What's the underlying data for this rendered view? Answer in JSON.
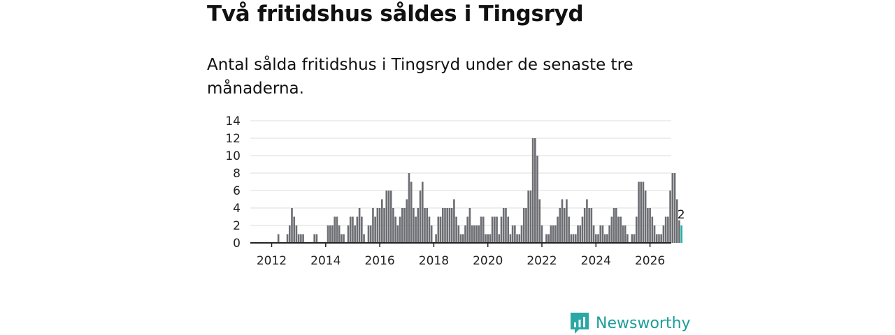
{
  "header": {
    "title": "Två fritidshus såldes i Tingsryd",
    "subtitle": "Antal sålda fritidshus i Tingsryd under de senaste tre månaderna."
  },
  "brand": {
    "name": "Newsworthy"
  },
  "colors": {
    "bar": "#6d6e73",
    "highlight": "#1fb5b0",
    "grid": "#dddddd",
    "axis": "#222222",
    "brand": "#1c9c9a"
  },
  "chart_data": {
    "type": "bar",
    "title": "Antal sålda fritidshus i Tingsryd under de senaste tre månaderna.",
    "xlabel": "",
    "ylabel": "",
    "ylim": [
      0,
      14
    ],
    "yticks": [
      0,
      2,
      4,
      6,
      8,
      10,
      12,
      14
    ],
    "xticks": [
      "2012",
      "2014",
      "2016",
      "2018",
      "2020",
      "2022",
      "2024",
      "2026"
    ],
    "start": "2011-01",
    "frequency": "monthly",
    "values": [
      0,
      0,
      0,
      0,
      0,
      0,
      0,
      0,
      0,
      0,
      0,
      0,
      0,
      0,
      0,
      1,
      0,
      0,
      0,
      1,
      2,
      4,
      3,
      2,
      1,
      1,
      1,
      0,
      0,
      0,
      0,
      1,
      1,
      0,
      0,
      0,
      0,
      2,
      2,
      2,
      3,
      3,
      2,
      1,
      1,
      0,
      2,
      3,
      3,
      2,
      3,
      4,
      3,
      1,
      0,
      2,
      2,
      4,
      3,
      4,
      4,
      5,
      4,
      6,
      6,
      6,
      4,
      3,
      2,
      3,
      4,
      4,
      5,
      8,
      7,
      4,
      3,
      4,
      6,
      7,
      4,
      4,
      3,
      2,
      0,
      1,
      3,
      3,
      4,
      4,
      4,
      4,
      4,
      5,
      3,
      2,
      1,
      1,
      2,
      3,
      4,
      2,
      2,
      2,
      2,
      3,
      3,
      1,
      1,
      1,
      3,
      3,
      3,
      1,
      3,
      4,
      4,
      3,
      1,
      2,
      2,
      1,
      1,
      2,
      4,
      4,
      6,
      6,
      12,
      12,
      10,
      5,
      2,
      0,
      1,
      1,
      2,
      2,
      2,
      3,
      4,
      5,
      4,
      5,
      3,
      1,
      1,
      1,
      2,
      2,
      3,
      4,
      5,
      4,
      4,
      2,
      1,
      1,
      2,
      2,
      1,
      1,
      2,
      3,
      4,
      4,
      3,
      3,
      2,
      2,
      1,
      0,
      1,
      1,
      3,
      7,
      7,
      7,
      6,
      4,
      4,
      3,
      2,
      1,
      1,
      1,
      2,
      3,
      3,
      6,
      8,
      8,
      5,
      2.6,
      2
    ],
    "highlight": {
      "label": "2",
      "value": 2
    }
  }
}
